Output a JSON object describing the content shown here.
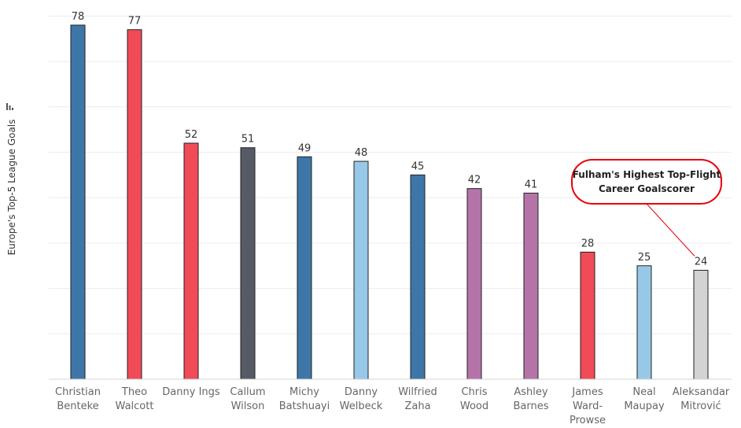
{
  "chart_data": {
    "type": "bar",
    "ylabel": "Europe's Top-5 League Goals",
    "ylim": [
      0,
      82
    ],
    "grid": true,
    "categories": [
      [
        "Christian",
        "Benteke"
      ],
      [
        "Theo",
        "Walcott"
      ],
      [
        "Danny Ings"
      ],
      [
        "Callum",
        "Wilson"
      ],
      [
        "Michy",
        "Batshuayi"
      ],
      [
        "Danny",
        "Welbeck"
      ],
      [
        "Wilfried",
        "Zaha"
      ],
      [
        "Chris",
        "Wood"
      ],
      [
        "Ashley",
        "Barnes"
      ],
      [
        "James",
        "Ward-",
        "Prowse"
      ],
      [
        "Neal",
        "Maupay"
      ],
      [
        "Aleksandar",
        "Mitrović"
      ]
    ],
    "values": [
      78,
      77,
      52,
      51,
      49,
      48,
      45,
      42,
      41,
      28,
      25,
      24
    ],
    "colors": [
      "#3e76a8",
      "#f04b57",
      "#f04b57",
      "#565a65",
      "#3e76a8",
      "#97c8e8",
      "#3e76a8",
      "#b474a8",
      "#b474a8",
      "#f04b57",
      "#97c8e8",
      "#d3d3d3"
    ],
    "annotation": {
      "text": [
        "Fulham's Highest Top-Flight",
        "Career Goalscorer"
      ],
      "target_index": 11,
      "border_color": "#e8000b"
    }
  }
}
